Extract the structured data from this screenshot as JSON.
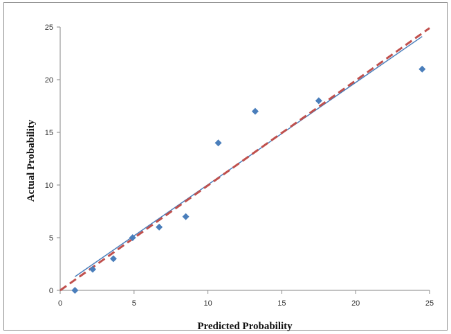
{
  "chart_data": {
    "type": "scatter",
    "title": "",
    "xlabel": "Predicted Probability",
    "ylabel": "Actual Probability",
    "xlim": [
      0,
      25
    ],
    "ylim": [
      0,
      25
    ],
    "xticks": [
      0,
      5,
      10,
      15,
      20,
      25
    ],
    "yticks": [
      0,
      5,
      10,
      15,
      20,
      25
    ],
    "grid": false,
    "legend": "none",
    "series": [
      {
        "type": "scatter",
        "marker": "diamond",
        "color": "#4a7ebb",
        "points": [
          {
            "x": 1.0,
            "y": 0
          },
          {
            "x": 2.2,
            "y": 2
          },
          {
            "x": 3.6,
            "y": 3
          },
          {
            "x": 4.9,
            "y": 5
          },
          {
            "x": 6.7,
            "y": 6
          },
          {
            "x": 8.5,
            "y": 7
          },
          {
            "x": 10.7,
            "y": 14
          },
          {
            "x": 13.2,
            "y": 17
          },
          {
            "x": 17.5,
            "y": 18
          },
          {
            "x": 24.5,
            "y": 21
          }
        ]
      },
      {
        "type": "line",
        "style": "solid",
        "color": "#4a7ebb",
        "points": [
          {
            "x": 1.0,
            "y": 1.3
          },
          {
            "x": 24.5,
            "y": 24.1
          }
        ]
      },
      {
        "type": "line",
        "style": "dashed",
        "color": "#c0504d",
        "points": [
          {
            "x": 0,
            "y": 0
          },
          {
            "x": 25,
            "y": 24.9
          }
        ]
      }
    ]
  }
}
